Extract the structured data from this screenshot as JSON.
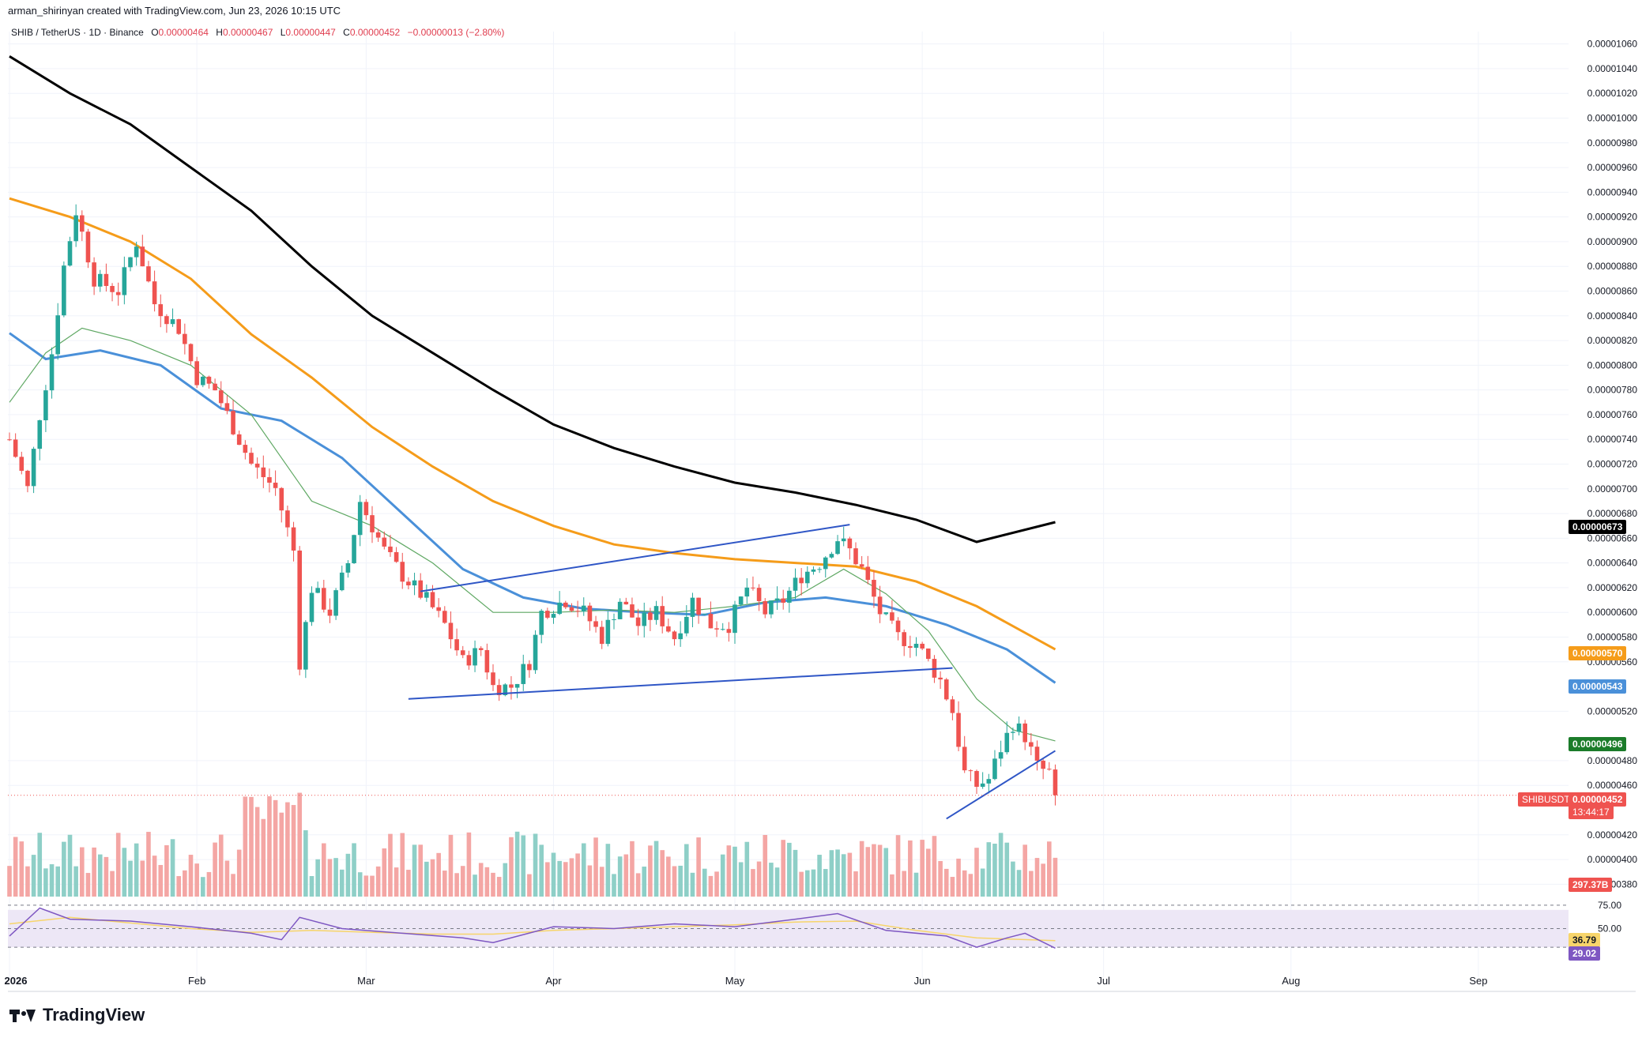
{
  "header": {
    "credit": "arman_shirinyan created with TradingView.com, Jun 23, 2026 10:15 UTC",
    "symbol": "SHIB / TetherUS · 1D · Binance",
    "o_label": "O",
    "o_value": "0.00000464",
    "h_label": "H",
    "h_value": "0.00000467",
    "l_label": "L",
    "l_value": "0.00000447",
    "c_label": "C",
    "c_value": "0.00000452",
    "change": "−0.00000013 (−2.80%)"
  },
  "brand": "TradingView",
  "colors": {
    "up": "#26a69a",
    "down": "#ef5350",
    "vol_up": "#8ecfc7",
    "vol_down": "#f4a6a4",
    "ma200": "#000000",
    "ma100": "#f59c1a",
    "ma50": "#4a90d9",
    "ma20": "#5fa863",
    "channel": "#2f56c6",
    "rsi": "#7e57c2",
    "rsi_ma": "#f7d56b",
    "rsi_band": "#ede7f6"
  },
  "tags": {
    "ma200": "0.00000673",
    "ma100": "0.00000570",
    "ma50": "0.00000543",
    "ma20": "0.00000496",
    "symbol_label": "SHIBUSDT",
    "price": "0.00000452",
    "countdown": "13:44:17",
    "volume": "297.37B",
    "rsi_ma": "36.79",
    "rsi": "29.02"
  },
  "chart_data": {
    "type": "candlestick",
    "title": "SHIB / TetherUS · 1D · Binance",
    "y_axis_ticks": [
      "0.00001060",
      "0.00001040",
      "0.00001020",
      "0.00001000",
      "0.00000980",
      "0.00000960",
      "0.00000940",
      "0.00000920",
      "0.00000900",
      "0.00000880",
      "0.00000860",
      "0.00000840",
      "0.00000820",
      "0.00000800",
      "0.00000780",
      "0.00000760",
      "0.00000740",
      "0.00000720",
      "0.00000700",
      "0.00000680",
      "0.00000660",
      "0.00000640",
      "0.00000620",
      "0.00000600",
      "0.00000580",
      "0.00000560",
      "0.00000520",
      "0.00000480",
      "0.00000460",
      "0.00000420",
      "0.00000400",
      "0.00000380"
    ],
    "ylim": [
      3.7e-06,
      1.07e-05
    ],
    "x_axis_ticks": [
      "2026",
      "Feb",
      "Mar",
      "Apr",
      "May",
      "Jun",
      "Jul",
      "Aug",
      "Sep"
    ],
    "rsi_levels": [
      "75.00",
      "50.00"
    ],
    "ma200_end": 6.73e-06,
    "ma100_end": 5.7e-06,
    "ma50_end": 5.43e-06,
    "ma20_end": 4.96e-06,
    "last_close": 4.52e-06,
    "volume_last": "297.37B",
    "rsi_last": 29.02,
    "rsi_ma_last": 36.79,
    "channel_upper": [
      {
        "date": "2026-03-10",
        "y": 6.17e-06
      },
      {
        "date": "2026-05-20",
        "y": 6.71e-06
      }
    ],
    "channel_lower": [
      {
        "date": "2026-03-08",
        "y": 5.3e-06
      },
      {
        "date": "2026-06-06",
        "y": 5.55e-06
      }
    ],
    "wedge_support": [
      {
        "date": "2026-06-05",
        "y": 4.33e-06
      },
      {
        "date": "2026-06-23",
        "y": 4.88e-06
      }
    ],
    "grid": true
  }
}
